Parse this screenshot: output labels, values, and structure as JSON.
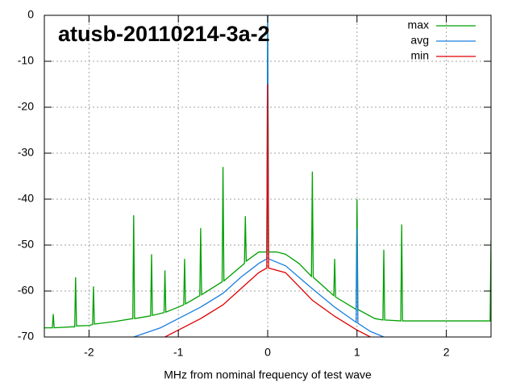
{
  "chart_data": {
    "type": "line",
    "title": "atusb-20110214-3a-2",
    "x_label": "MHz from nominal frequency of test wave",
    "xlim": [
      -2.5,
      2.5
    ],
    "xticks": [
      -2,
      -1,
      0,
      1,
      2
    ],
    "ylim": [
      -70,
      0
    ],
    "yticks": [
      0,
      -10,
      -20,
      -30,
      -40,
      -50,
      -60,
      -70
    ],
    "grid": true,
    "legend": "top-right",
    "series": [
      {
        "name": "max",
        "color": "#00a000",
        "x": [
          -2.5,
          -2.41,
          -2.4,
          -2.39,
          -2.2,
          -2.16,
          -2.15,
          -2.14,
          -2,
          -1.96,
          -1.95,
          -1.94,
          -1.7,
          -1.51,
          -1.5,
          -1.49,
          -1.31,
          -1.3,
          -1.29,
          -1.16,
          -1.15,
          -1.14,
          -1,
          -0.94,
          -0.93,
          -0.92,
          -0.76,
          -0.75,
          -0.74,
          -0.51,
          -0.5,
          -0.49,
          -0.26,
          -0.25,
          -0.24,
          -0.1,
          -0.01,
          0,
          0.01,
          0.1,
          0.2,
          0.35,
          0.49,
          0.5,
          0.51,
          0.74,
          0.75,
          0.76,
          0.99,
          1,
          1.01,
          1.2,
          1.29,
          1.3,
          1.31,
          1.49,
          1.5,
          1.51,
          2,
          2.49,
          2.5
        ],
        "values": [
          -68,
          -68,
          -65,
          -68,
          -67.8,
          -67.8,
          -57,
          -67.6,
          -67.5,
          -67.3,
          -59,
          -67.2,
          -66.6,
          -66,
          -43.5,
          -66,
          -65.4,
          -52,
          -65.3,
          -64.7,
          -55.5,
          -64.6,
          -63.5,
          -63,
          -53,
          -62.8,
          -61,
          -46.3,
          -60.8,
          -58,
          -33,
          -57.8,
          -54,
          -43.7,
          -53.5,
          -51.5,
          -51.5,
          0,
          -51.5,
          -51.5,
          -52,
          -54,
          -56.8,
          -34,
          -57,
          -61,
          -53,
          -61.3,
          -64,
          -40,
          -64,
          -66,
          -66.3,
          -51,
          -66.3,
          -66.5,
          -45.5,
          -66.5,
          -66.5,
          -66.5,
          -49
        ]
      },
      {
        "name": "avg",
        "color": "#1a7fdd",
        "x": [
          -1.5,
          -1.2,
          -1,
          -0.75,
          -0.5,
          -0.3,
          -0.1,
          -0.01,
          0,
          0.01,
          0.2,
          0.5,
          0.75,
          0.99,
          1,
          1.01,
          1.15,
          1.3
        ],
        "values": [
          -70,
          -68,
          -66,
          -63.5,
          -60.5,
          -57,
          -54,
          -53,
          0,
          -53,
          -54.5,
          -59.5,
          -63.5,
          -66.8,
          -46.5,
          -67,
          -68.8,
          -70
        ]
      },
      {
        "name": "min",
        "color": "#e00000",
        "x": [
          -1.15,
          -1,
          -0.75,
          -0.5,
          -0.3,
          -0.1,
          -0.01,
          0,
          0.01,
          0.2,
          0.5,
          0.75,
          1,
          1.15
        ],
        "values": [
          -70,
          -68.5,
          -66,
          -63,
          -59.5,
          -56,
          -55,
          -15,
          -55,
          -56,
          -62,
          -65.5,
          -68.5,
          -70
        ]
      }
    ]
  }
}
